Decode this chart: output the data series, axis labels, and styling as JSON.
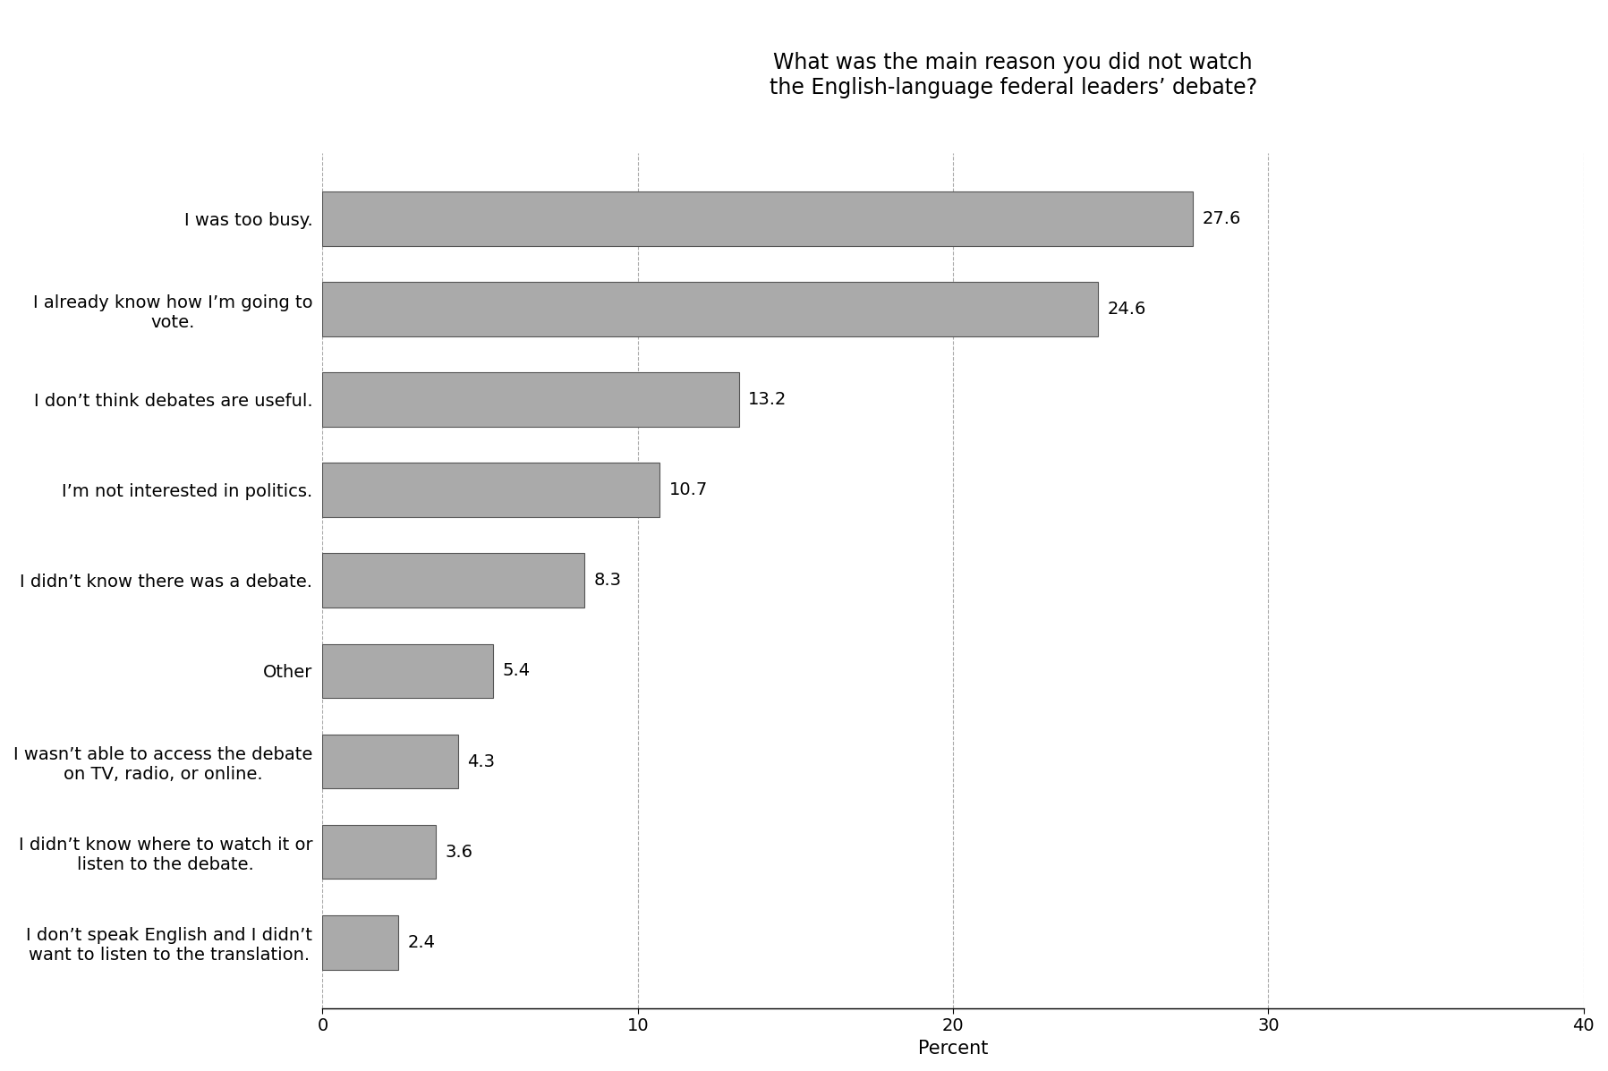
{
  "title": "What was the main reason you did not watch\nthe English-language federal leaders’ debate?",
  "categories": [
    "I don’t speak English and I didn’t\nwant to listen to the translation.",
    "I didn’t know where to watch it or\nlisten to the debate.",
    "I wasn’t able to access the debate\non TV, radio, or online.",
    "Other",
    "I didn’t know there was a debate.",
    "I’m not interested in politics.",
    "I don’t think debates are useful.",
    "I already know how I’m going to\nvote.",
    "I was too busy."
  ],
  "values": [
    2.4,
    3.6,
    4.3,
    5.4,
    8.3,
    10.7,
    13.2,
    24.6,
    27.6
  ],
  "bar_color": "#aaaaaa",
  "bar_edgecolor": "#555555",
  "xlabel": "Percent",
  "xlim": [
    0,
    40
  ],
  "xticks": [
    0,
    10,
    20,
    30,
    40
  ],
  "background_color": "#ffffff",
  "title_fontsize": 17,
  "label_fontsize": 14,
  "value_fontsize": 14,
  "xlabel_fontsize": 15,
  "tick_fontsize": 14
}
